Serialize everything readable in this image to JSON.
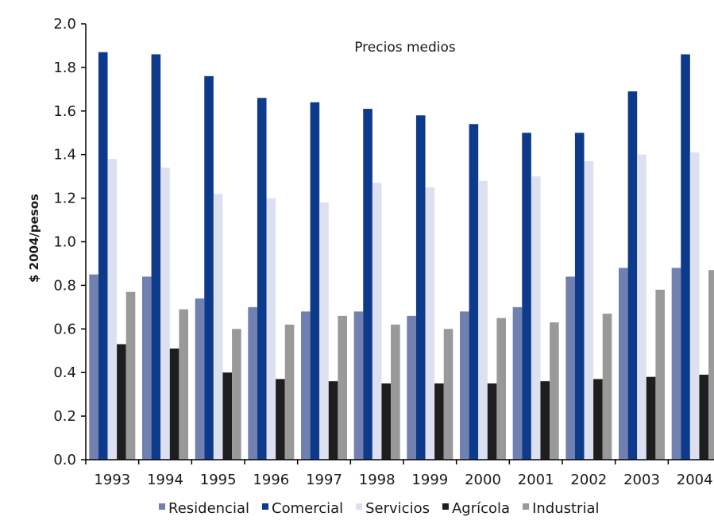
{
  "chart_data": {
    "type": "bar",
    "title": "Precios medios",
    "xlabel": "",
    "ylabel": "$ 2004/pesos",
    "ylim": [
      0,
      2.0
    ],
    "yticks": [
      "0.0",
      "0.2",
      "0.4",
      "0.6",
      "0.8",
      "1.0",
      "1.2",
      "1.4",
      "1.6",
      "1.8",
      "2.0"
    ],
    "grid": false,
    "legend_position": "bottom",
    "categories": [
      "1993",
      "1994",
      "1995",
      "1996",
      "1997",
      "1998",
      "1999",
      "2000",
      "2001",
      "2002",
      "2003",
      "2004"
    ],
    "series": [
      {
        "name": "Residencial",
        "color": "#7080B0",
        "values": [
          0.85,
          0.84,
          0.74,
          0.7,
          0.68,
          0.68,
          0.66,
          0.68,
          0.7,
          0.84,
          0.88,
          0.88
        ]
      },
      {
        "name": "Comercial",
        "color": "#0E3A8C",
        "values": [
          1.87,
          1.86,
          1.76,
          1.66,
          1.64,
          1.61,
          1.58,
          1.54,
          1.5,
          1.5,
          1.69,
          1.86
        ]
      },
      {
        "name": "Servicios",
        "color": "#DDE0F0",
        "values": [
          1.38,
          1.34,
          1.22,
          1.2,
          1.18,
          1.27,
          1.25,
          1.28,
          1.3,
          1.37,
          1.4,
          1.41
        ]
      },
      {
        "name": "Agrícola",
        "color": "#1E1E1E",
        "values": [
          0.53,
          0.51,
          0.4,
          0.37,
          0.36,
          0.35,
          0.35,
          0.35,
          0.36,
          0.37,
          0.38,
          0.39
        ]
      },
      {
        "name": "Industrial",
        "color": "#999999",
        "values": [
          0.77,
          0.69,
          0.6,
          0.62,
          0.66,
          0.62,
          0.6,
          0.65,
          0.63,
          0.67,
          0.78,
          0.87
        ]
      }
    ]
  }
}
